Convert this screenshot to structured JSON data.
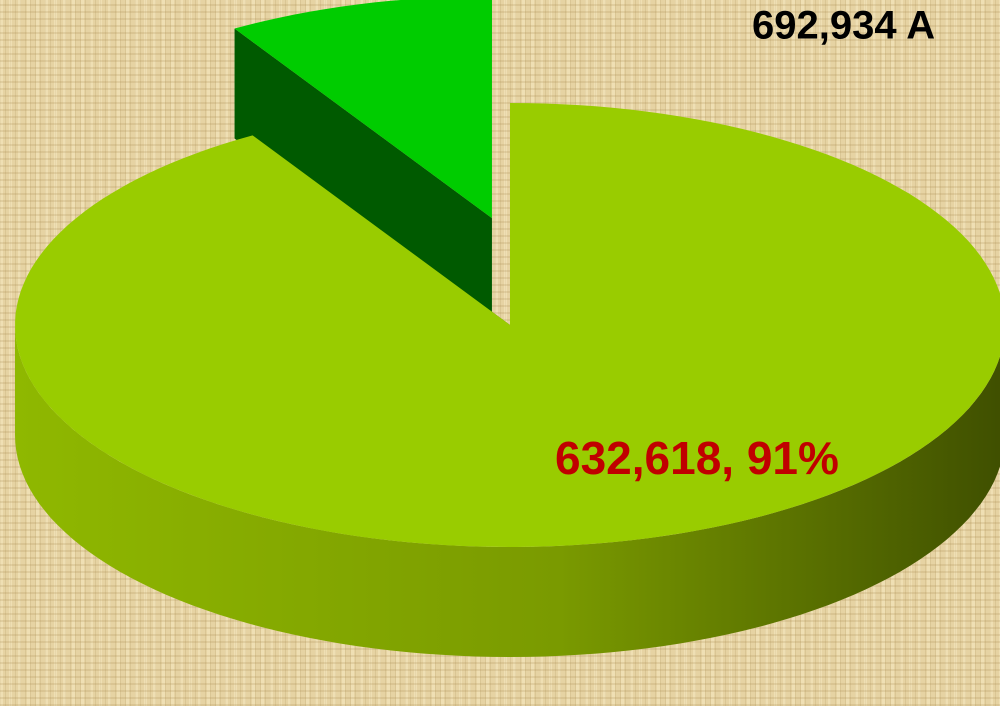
{
  "chart_data": {
    "type": "pie3d",
    "title": "692,934 A",
    "values": [
      632618,
      60316
    ],
    "value_labels": [
      "632,618, 91%",
      null
    ],
    "colors": [
      "#99cc00",
      "#00cc00"
    ],
    "side_colors": [
      "#4a5c00",
      "#005a00"
    ],
    "exploded": [
      false,
      true
    ],
    "label_color": "#c00000"
  }
}
